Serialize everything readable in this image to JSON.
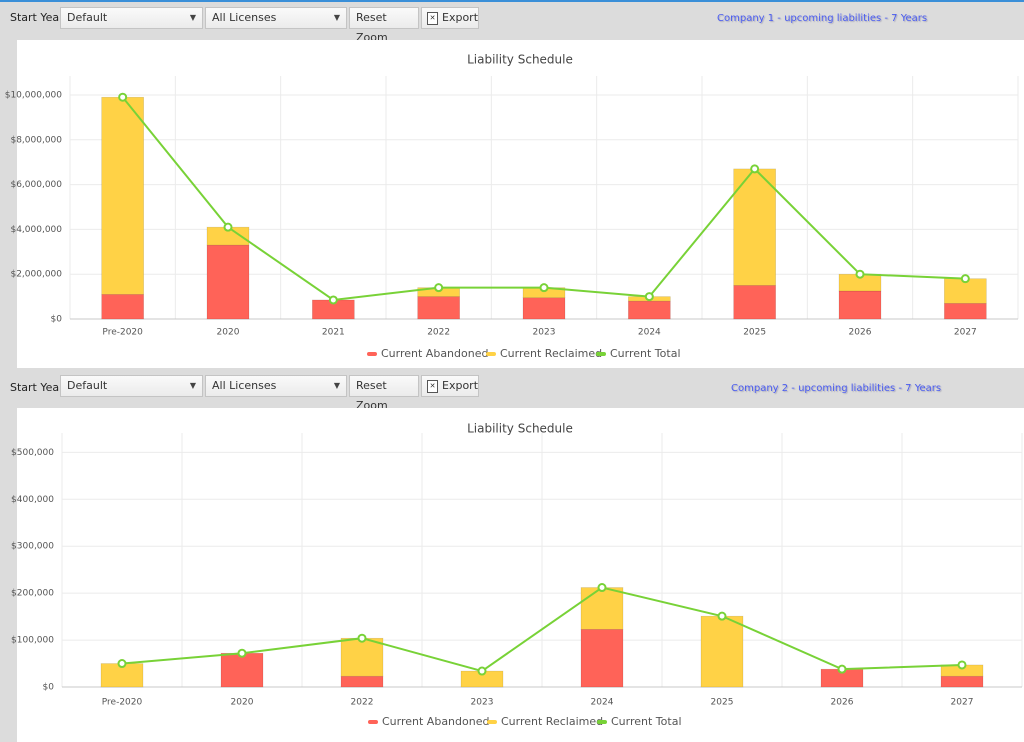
{
  "panels": [
    {
      "toolbar": {
        "start_year_label": "Start Year:",
        "year_select": "Default",
        "license_select": "All Licenses",
        "reset_button": "Reset Zoom",
        "export_button": "Export"
      },
      "caption": "Company 1 - upcoming liabilities - 7 Years"
    },
    {
      "toolbar": {
        "start_year_label": "Start Year:",
        "year_select": "Default",
        "license_select": "All Licenses",
        "reset_button": "Reset Zoom",
        "export_button": "Export"
      },
      "caption": "Company 2 - upcoming liabilities - 7 Years"
    }
  ],
  "chart_data": [
    {
      "type": "bar",
      "stacked": true,
      "title": "Liability Schedule",
      "categories": [
        "Pre-2020",
        "2020",
        "2021",
        "2022",
        "2023",
        "2024",
        "2025",
        "2026",
        "2027"
      ],
      "series": [
        {
          "name": "Current Abandoned",
          "type": "bar",
          "color": "#ff6358",
          "values": [
            1100000,
            3300000,
            850000,
            1000000,
            950000,
            800000,
            1500000,
            1250000,
            700000
          ]
        },
        {
          "name": "Current Reclaimed",
          "type": "bar",
          "color": "#ffd246",
          "values": [
            8800000,
            800000,
            0,
            400000,
            450000,
            200000,
            5200000,
            750000,
            1100000
          ]
        },
        {
          "name": "Current Total",
          "type": "line",
          "color": "#78d237",
          "values": [
            9900000,
            4100000,
            850000,
            1400000,
            1400000,
            1000000,
            6700000,
            2000000,
            1800000
          ]
        }
      ],
      "ylim": [
        0,
        10400000
      ],
      "yticks": [
        {
          "value": 0,
          "label": "$0"
        },
        {
          "value": 2000000,
          "label": "$2,000,000"
        },
        {
          "value": 4000000,
          "label": "$4,000,000"
        },
        {
          "value": 6000000,
          "label": "$6,000,000"
        },
        {
          "value": 8000000,
          "label": "$8,000,000"
        },
        {
          "value": 10000000,
          "label": "$10,000,000"
        }
      ],
      "grid": true,
      "legend": "bottom"
    },
    {
      "type": "bar",
      "stacked": true,
      "title": "Liability Schedule",
      "categories": [
        "Pre-2020",
        "2020",
        "2022",
        "2023",
        "2024",
        "2025",
        "2026",
        "2027"
      ],
      "series": [
        {
          "name": "Current Abandoned",
          "type": "bar",
          "color": "#ff6358",
          "values": [
            0,
            72000,
            23000,
            0,
            123000,
            0,
            38000,
            23000
          ]
        },
        {
          "name": "Current Reclaimed",
          "type": "bar",
          "color": "#ffd246",
          "values": [
            50000,
            0,
            81000,
            34000,
            89000,
            151000,
            0,
            24000
          ]
        },
        {
          "name": "Current Total",
          "type": "line",
          "color": "#78d237",
          "values": [
            50000,
            72000,
            104000,
            34000,
            212000,
            151000,
            38000,
            47000
          ]
        }
      ],
      "ylim": [
        0,
        520000
      ],
      "yticks": [
        {
          "value": 0,
          "label": "$0"
        },
        {
          "value": 100000,
          "label": "$100,000"
        },
        {
          "value": 200000,
          "label": "$200,000"
        },
        {
          "value": 300000,
          "label": "$300,000"
        },
        {
          "value": 400000,
          "label": "$400,000"
        },
        {
          "value": 500000,
          "label": "$500,000"
        }
      ],
      "grid": true,
      "legend": "bottom"
    }
  ]
}
